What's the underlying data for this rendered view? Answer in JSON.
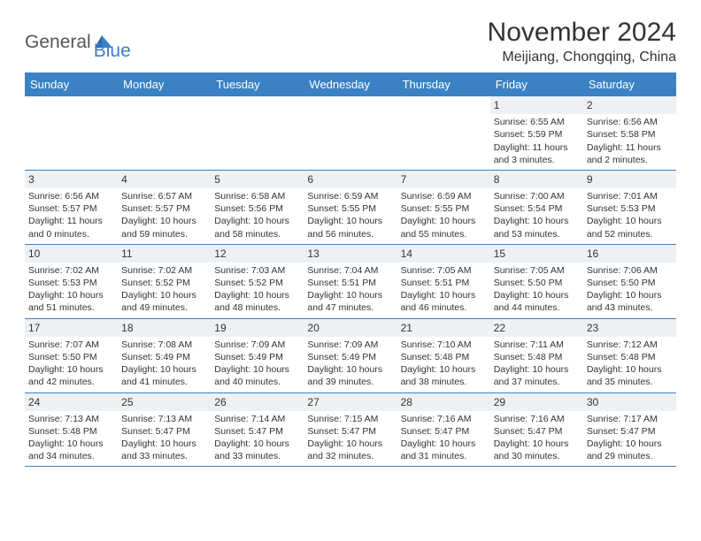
{
  "logo": {
    "text_general": "General",
    "text_blue": "Blue"
  },
  "title": "November 2024",
  "location": "Meijiang, Chongqing, China",
  "colors": {
    "header_bar": "#3b82c4",
    "day_num_bg": "#eef1f4",
    "row_border": "#3b82c4",
    "text": "#333333",
    "logo_blue": "#3b7fc4",
    "logo_gray": "#555555"
  },
  "weekdays": [
    "Sunday",
    "Monday",
    "Tuesday",
    "Wednesday",
    "Thursday",
    "Friday",
    "Saturday"
  ],
  "weeks": [
    [
      {
        "n": "",
        "empty": true
      },
      {
        "n": "",
        "empty": true
      },
      {
        "n": "",
        "empty": true
      },
      {
        "n": "",
        "empty": true
      },
      {
        "n": "",
        "empty": true
      },
      {
        "n": "1",
        "sunrise": "Sunrise: 6:55 AM",
        "sunset": "Sunset: 5:59 PM",
        "daylight": "Daylight: 11 hours and 3 minutes."
      },
      {
        "n": "2",
        "sunrise": "Sunrise: 6:56 AM",
        "sunset": "Sunset: 5:58 PM",
        "daylight": "Daylight: 11 hours and 2 minutes."
      }
    ],
    [
      {
        "n": "3",
        "sunrise": "Sunrise: 6:56 AM",
        "sunset": "Sunset: 5:57 PM",
        "daylight": "Daylight: 11 hours and 0 minutes."
      },
      {
        "n": "4",
        "sunrise": "Sunrise: 6:57 AM",
        "sunset": "Sunset: 5:57 PM",
        "daylight": "Daylight: 10 hours and 59 minutes."
      },
      {
        "n": "5",
        "sunrise": "Sunrise: 6:58 AM",
        "sunset": "Sunset: 5:56 PM",
        "daylight": "Daylight: 10 hours and 58 minutes."
      },
      {
        "n": "6",
        "sunrise": "Sunrise: 6:59 AM",
        "sunset": "Sunset: 5:55 PM",
        "daylight": "Daylight: 10 hours and 56 minutes."
      },
      {
        "n": "7",
        "sunrise": "Sunrise: 6:59 AM",
        "sunset": "Sunset: 5:55 PM",
        "daylight": "Daylight: 10 hours and 55 minutes."
      },
      {
        "n": "8",
        "sunrise": "Sunrise: 7:00 AM",
        "sunset": "Sunset: 5:54 PM",
        "daylight": "Daylight: 10 hours and 53 minutes."
      },
      {
        "n": "9",
        "sunrise": "Sunrise: 7:01 AM",
        "sunset": "Sunset: 5:53 PM",
        "daylight": "Daylight: 10 hours and 52 minutes."
      }
    ],
    [
      {
        "n": "10",
        "sunrise": "Sunrise: 7:02 AM",
        "sunset": "Sunset: 5:53 PM",
        "daylight": "Daylight: 10 hours and 51 minutes."
      },
      {
        "n": "11",
        "sunrise": "Sunrise: 7:02 AM",
        "sunset": "Sunset: 5:52 PM",
        "daylight": "Daylight: 10 hours and 49 minutes."
      },
      {
        "n": "12",
        "sunrise": "Sunrise: 7:03 AM",
        "sunset": "Sunset: 5:52 PM",
        "daylight": "Daylight: 10 hours and 48 minutes."
      },
      {
        "n": "13",
        "sunrise": "Sunrise: 7:04 AM",
        "sunset": "Sunset: 5:51 PM",
        "daylight": "Daylight: 10 hours and 47 minutes."
      },
      {
        "n": "14",
        "sunrise": "Sunrise: 7:05 AM",
        "sunset": "Sunset: 5:51 PM",
        "daylight": "Daylight: 10 hours and 46 minutes."
      },
      {
        "n": "15",
        "sunrise": "Sunrise: 7:05 AM",
        "sunset": "Sunset: 5:50 PM",
        "daylight": "Daylight: 10 hours and 44 minutes."
      },
      {
        "n": "16",
        "sunrise": "Sunrise: 7:06 AM",
        "sunset": "Sunset: 5:50 PM",
        "daylight": "Daylight: 10 hours and 43 minutes."
      }
    ],
    [
      {
        "n": "17",
        "sunrise": "Sunrise: 7:07 AM",
        "sunset": "Sunset: 5:50 PM",
        "daylight": "Daylight: 10 hours and 42 minutes."
      },
      {
        "n": "18",
        "sunrise": "Sunrise: 7:08 AM",
        "sunset": "Sunset: 5:49 PM",
        "daylight": "Daylight: 10 hours and 41 minutes."
      },
      {
        "n": "19",
        "sunrise": "Sunrise: 7:09 AM",
        "sunset": "Sunset: 5:49 PM",
        "daylight": "Daylight: 10 hours and 40 minutes."
      },
      {
        "n": "20",
        "sunrise": "Sunrise: 7:09 AM",
        "sunset": "Sunset: 5:49 PM",
        "daylight": "Daylight: 10 hours and 39 minutes."
      },
      {
        "n": "21",
        "sunrise": "Sunrise: 7:10 AM",
        "sunset": "Sunset: 5:48 PM",
        "daylight": "Daylight: 10 hours and 38 minutes."
      },
      {
        "n": "22",
        "sunrise": "Sunrise: 7:11 AM",
        "sunset": "Sunset: 5:48 PM",
        "daylight": "Daylight: 10 hours and 37 minutes."
      },
      {
        "n": "23",
        "sunrise": "Sunrise: 7:12 AM",
        "sunset": "Sunset: 5:48 PM",
        "daylight": "Daylight: 10 hours and 35 minutes."
      }
    ],
    [
      {
        "n": "24",
        "sunrise": "Sunrise: 7:13 AM",
        "sunset": "Sunset: 5:48 PM",
        "daylight": "Daylight: 10 hours and 34 minutes."
      },
      {
        "n": "25",
        "sunrise": "Sunrise: 7:13 AM",
        "sunset": "Sunset: 5:47 PM",
        "daylight": "Daylight: 10 hours and 33 minutes."
      },
      {
        "n": "26",
        "sunrise": "Sunrise: 7:14 AM",
        "sunset": "Sunset: 5:47 PM",
        "daylight": "Daylight: 10 hours and 33 minutes."
      },
      {
        "n": "27",
        "sunrise": "Sunrise: 7:15 AM",
        "sunset": "Sunset: 5:47 PM",
        "daylight": "Daylight: 10 hours and 32 minutes."
      },
      {
        "n": "28",
        "sunrise": "Sunrise: 7:16 AM",
        "sunset": "Sunset: 5:47 PM",
        "daylight": "Daylight: 10 hours and 31 minutes."
      },
      {
        "n": "29",
        "sunrise": "Sunrise: 7:16 AM",
        "sunset": "Sunset: 5:47 PM",
        "daylight": "Daylight: 10 hours and 30 minutes."
      },
      {
        "n": "30",
        "sunrise": "Sunrise: 7:17 AM",
        "sunset": "Sunset: 5:47 PM",
        "daylight": "Daylight: 10 hours and 29 minutes."
      }
    ]
  ]
}
